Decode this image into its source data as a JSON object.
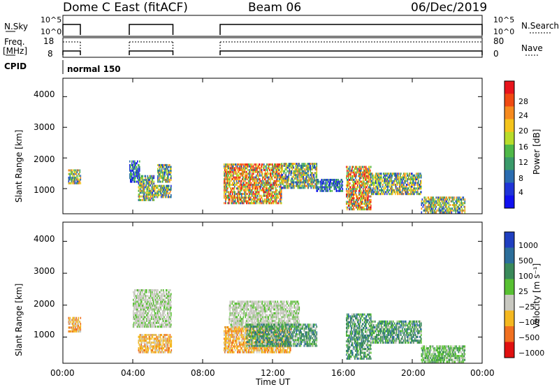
{
  "header": {
    "title": "Dome C East (fitACF)",
    "beam": "Beam 06",
    "date": "06/Dec/2019"
  },
  "strips": {
    "nsky_label": "N.Sky",
    "nsky_ticks": [
      "10^5",
      "10^0"
    ],
    "nsky_right_ticks": [
      "10^5",
      "10^0"
    ],
    "nsearch_label": "N.Search",
    "freq_label": "Freq.",
    "freq_unit": "[MHz]",
    "freq_ticks": [
      "18",
      "8"
    ],
    "nave_label": "Nave",
    "nave_ticks": [
      "80",
      "0"
    ],
    "cpid_label": "CPID",
    "cpid_text": "normal 150",
    "active_intervals_hours": [
      [
        0.0,
        1.0
      ],
      [
        3.8,
        6.3
      ],
      [
        9.0,
        24.0
      ]
    ]
  },
  "chart_data": [
    {
      "type": "heatmap",
      "title": "",
      "xlabel": "",
      "ylabel": "Slant Range [km]",
      "x_range_hours": [
        0,
        24
      ],
      "y_range_km": [
        180,
        4600
      ],
      "y_ticks": [
        "4000",
        "3000",
        "2000",
        "1000"
      ],
      "colorbar_label": "Power [dB]",
      "colorbar_ticks": [
        "28",
        "24",
        "20",
        "16",
        "12",
        "8",
        "4"
      ],
      "colorbar_colors": [
        "#e8141c",
        "#f04a12",
        "#f68a1e",
        "#f4c41c",
        "#b8dc2a",
        "#4fb848",
        "#3a9a6a",
        "#2a6cb0",
        "#1f34d8",
        "#1010f0"
      ],
      "regions": [
        {
          "t": [
            0.3,
            1.0
          ],
          "r": [
            1150,
            1600
          ],
          "level": "medium"
        },
        {
          "t": [
            3.8,
            4.4
          ],
          "r": [
            1200,
            1900
          ],
          "level": "low"
        },
        {
          "t": [
            4.3,
            5.2
          ],
          "r": [
            600,
            1400
          ],
          "level": "medium"
        },
        {
          "t": [
            5.2,
            6.2
          ],
          "r": [
            700,
            1100
          ],
          "level": "medium"
        },
        {
          "t": [
            5.4,
            6.2
          ],
          "r": [
            1200,
            1800
          ],
          "level": "medium"
        },
        {
          "t": [
            9.2,
            12.5
          ],
          "r": [
            500,
            1800
          ],
          "level": "high"
        },
        {
          "t": [
            12.5,
            14.5
          ],
          "r": [
            1000,
            1800
          ],
          "level": "medium"
        },
        {
          "t": [
            14.5,
            16.0
          ],
          "r": [
            900,
            1300
          ],
          "level": "low"
        },
        {
          "t": [
            16.2,
            17.6
          ],
          "r": [
            300,
            1700
          ],
          "level": "high"
        },
        {
          "t": [
            17.6,
            20.5
          ],
          "r": [
            800,
            1500
          ],
          "level": "medium"
        },
        {
          "t": [
            20.5,
            23.0
          ],
          "r": [
            200,
            700
          ],
          "level": "medium"
        }
      ]
    },
    {
      "type": "heatmap",
      "title": "",
      "xlabel": "Time UT",
      "ylabel": "Slant Range [km]",
      "x_ticks": [
        "00:00",
        "04:00",
        "08:00",
        "12:00",
        "16:00",
        "20:00",
        "00:00"
      ],
      "x_range_hours": [
        0,
        24
      ],
      "y_range_km": [
        180,
        4600
      ],
      "y_ticks": [
        "4000",
        "3000",
        "2000",
        "1000"
      ],
      "colorbar_label": "Velocity [m s⁻¹]",
      "colorbar_ticks": [
        "1000",
        "500",
        "100",
        "25",
        "−25",
        "−100",
        "−500",
        "−1000"
      ],
      "colorbar_colors": [
        "#1f3fc0",
        "#2c6e9a",
        "#3a8a5a",
        "#58c032",
        "#c8c8c0",
        "#f4b820",
        "#f07020",
        "#e01010"
      ],
      "regions": [
        {
          "t": [
            0.3,
            1.0
          ],
          "r": [
            1150,
            1600
          ],
          "level": "negative"
        },
        {
          "t": [
            4.0,
            6.2
          ],
          "r": [
            1300,
            2500
          ],
          "level": "ground"
        },
        {
          "t": [
            4.3,
            6.2
          ],
          "r": [
            500,
            1100
          ],
          "level": "negative"
        },
        {
          "t": [
            9.2,
            13.0
          ],
          "r": [
            500,
            1300
          ],
          "level": "negative"
        },
        {
          "t": [
            9.5,
            13.5
          ],
          "r": [
            1300,
            2100
          ],
          "level": "ground"
        },
        {
          "t": [
            10.5,
            14.5
          ],
          "r": [
            700,
            1400
          ],
          "level": "positive"
        },
        {
          "t": [
            16.2,
            17.6
          ],
          "r": [
            300,
            1700
          ],
          "level": "positive"
        },
        {
          "t": [
            17.6,
            20.5
          ],
          "r": [
            800,
            1500
          ],
          "level": "positive"
        },
        {
          "t": [
            20.5,
            23.0
          ],
          "r": [
            200,
            700
          ],
          "level": "weak-positive"
        }
      ]
    }
  ]
}
